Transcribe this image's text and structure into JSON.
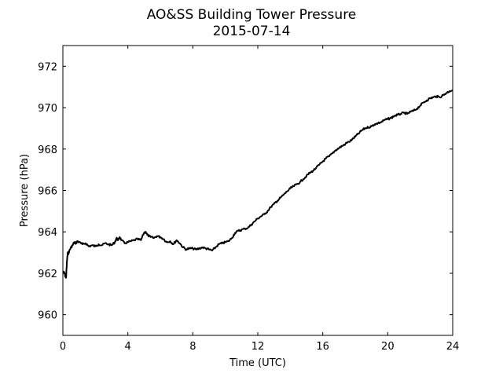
{
  "chart_data": {
    "type": "line",
    "title": "AO&SS Building Tower Pressure",
    "subtitle": "2015-07-14",
    "xlabel": "Time (UTC)",
    "ylabel": "Pressure (hPa)",
    "xlim": [
      0,
      24
    ],
    "ylim": [
      959,
      973
    ],
    "xticks": [
      0,
      4,
      8,
      12,
      16,
      20,
      24
    ],
    "yticks": [
      960,
      962,
      964,
      966,
      968,
      970,
      972
    ],
    "xtick_labels": [
      "0",
      "4",
      "8",
      "12",
      "16",
      "20",
      "24"
    ],
    "ytick_labels": [
      "960",
      "962",
      "964",
      "966",
      "968",
      "970",
      "972"
    ],
    "grid": false,
    "series_color": "#000000",
    "x": [
      0.0,
      0.1,
      0.15,
      0.2,
      0.25,
      0.3,
      0.35,
      0.4,
      0.5,
      0.6,
      0.7,
      0.8,
      0.9,
      1.0,
      1.2,
      1.4,
      1.6,
      1.8,
      2.0,
      2.2,
      2.4,
      2.6,
      2.8,
      3.0,
      3.2,
      3.3,
      3.4,
      3.5,
      3.6,
      3.8,
      4.0,
      4.2,
      4.4,
      4.6,
      4.8,
      5.0,
      5.1,
      5.2,
      5.4,
      5.6,
      5.8,
      6.0,
      6.2,
      6.4,
      6.6,
      6.8,
      7.0,
      7.2,
      7.4,
      7.6,
      7.8,
      8.0,
      8.2,
      8.4,
      8.6,
      8.8,
      9.0,
      9.2,
      9.4,
      9.6,
      9.8,
      10.0,
      10.2,
      10.4,
      10.6,
      10.8,
      11.0,
      11.2,
      11.4,
      11.6,
      11.8,
      12.0,
      12.2,
      12.4,
      12.6,
      12.8,
      13.0,
      13.2,
      13.4,
      13.6,
      13.8,
      14.0,
      14.2,
      14.4,
      14.6,
      14.8,
      15.0,
      15.2,
      15.4,
      15.6,
      15.8,
      16.0,
      16.2,
      16.4,
      16.6,
      16.8,
      17.0,
      17.2,
      17.4,
      17.6,
      17.8,
      18.0,
      18.2,
      18.4,
      18.6,
      18.8,
      19.0,
      19.2,
      19.4,
      19.6,
      19.8,
      20.0,
      20.2,
      20.4,
      20.6,
      20.8,
      21.0,
      21.2,
      21.4,
      21.6,
      21.8,
      22.0,
      22.2,
      22.4,
      22.6,
      22.8,
      23.0,
      23.2,
      23.4,
      23.6,
      23.8,
      24.0
    ],
    "y": [
      962.1,
      962.0,
      961.85,
      961.8,
      962.6,
      963.0,
      962.95,
      963.1,
      963.25,
      963.35,
      963.5,
      963.45,
      963.55,
      963.5,
      963.4,
      963.45,
      963.3,
      963.35,
      963.3,
      963.4,
      963.35,
      963.45,
      963.4,
      963.35,
      963.5,
      963.7,
      963.6,
      963.75,
      963.6,
      963.45,
      963.5,
      963.55,
      963.6,
      963.65,
      963.6,
      963.95,
      964.0,
      963.85,
      963.75,
      963.7,
      963.8,
      963.75,
      963.65,
      963.5,
      963.55,
      963.4,
      963.6,
      963.45,
      963.25,
      963.15,
      963.2,
      963.2,
      963.15,
      963.2,
      963.25,
      963.2,
      963.15,
      963.1,
      963.25,
      963.4,
      963.45,
      963.5,
      963.55,
      963.7,
      963.95,
      964.05,
      964.1,
      964.15,
      964.2,
      964.35,
      964.5,
      964.65,
      964.75,
      964.85,
      965.0,
      965.2,
      965.35,
      965.5,
      965.65,
      965.8,
      965.95,
      966.1,
      966.2,
      966.3,
      966.4,
      966.55,
      966.7,
      966.85,
      966.95,
      967.1,
      967.25,
      967.4,
      967.55,
      967.65,
      967.8,
      967.95,
      968.05,
      968.15,
      968.25,
      968.35,
      968.45,
      968.6,
      968.75,
      968.9,
      969.0,
      969.05,
      969.1,
      969.2,
      969.25,
      969.3,
      969.4,
      969.45,
      969.5,
      969.6,
      969.65,
      969.7,
      969.75,
      969.7,
      969.8,
      969.85,
      969.95,
      970.1,
      970.25,
      970.35,
      970.45,
      970.5,
      970.55,
      970.5,
      970.6,
      970.7,
      970.8,
      970.85
    ]
  }
}
